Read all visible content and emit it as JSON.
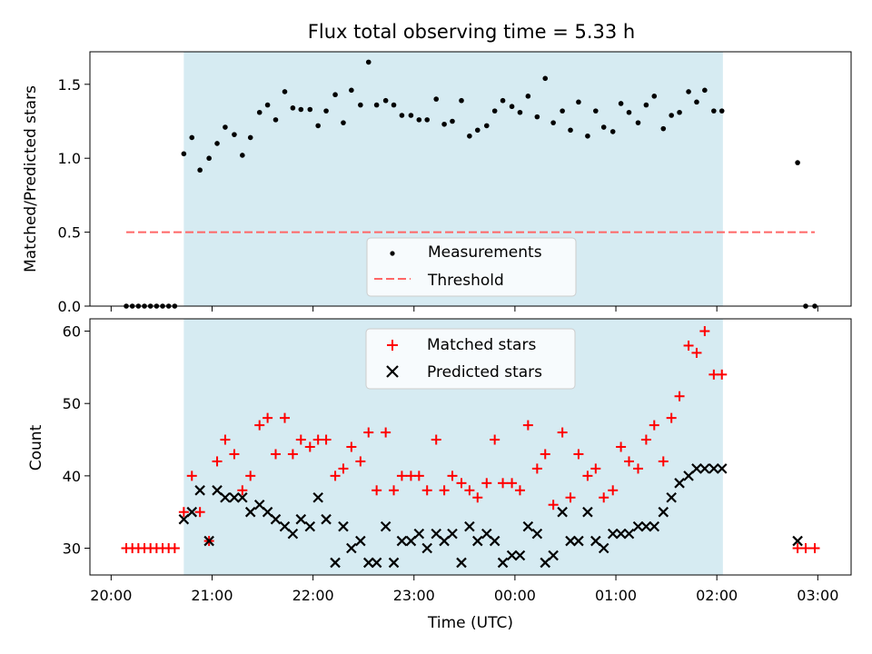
{
  "figure": {
    "title": "Flux total observing time = 5.33 h"
  },
  "top": {
    "ylabel": "Matched/Predicted stars",
    "yticks": [
      {
        "v": 0.0,
        "label": "0.0"
      },
      {
        "v": 0.5,
        "label": "0.5"
      },
      {
        "v": 1.0,
        "label": "1.0"
      },
      {
        "v": 1.5,
        "label": "1.5"
      }
    ],
    "legend": {
      "measurements": "Measurements",
      "threshold": "Threshold"
    }
  },
  "bottom": {
    "ylabel": "Count",
    "xlabel": "Time (UTC)",
    "yticks": [
      {
        "v": 30,
        "label": "30"
      },
      {
        "v": 40,
        "label": "40"
      },
      {
        "v": 50,
        "label": "50"
      },
      {
        "v": 60,
        "label": "60"
      }
    ],
    "legend": {
      "matched": "Matched stars",
      "predicted": "Predicted stars"
    }
  },
  "xticks": [
    {
      "v": 0,
      "label": "20:00"
    },
    {
      "v": 1,
      "label": "21:00"
    },
    {
      "v": 2,
      "label": "22:00"
    },
    {
      "v": 3,
      "label": "23:00"
    },
    {
      "v": 4,
      "label": "00:00"
    },
    {
      "v": 5,
      "label": "01:00"
    },
    {
      "v": 6,
      "label": "02:00"
    },
    {
      "v": 7,
      "label": "03:00"
    }
  ],
  "chart_data": [
    {
      "type": "scatter",
      "panel": "top",
      "title": "Flux total observing time = 5.33 h",
      "xlabel": "",
      "ylabel": "Matched/Predicted stars",
      "xlim": [
        -0.21,
        7.33
      ],
      "ylim": [
        0,
        1.72
      ],
      "x_unit": "hours since 20:00 UTC",
      "shaded_span": [
        0.72,
        6.06
      ],
      "shaded_color": "#add8e6",
      "legend_position": "lower center",
      "series": [
        {
          "name": "Measurements",
          "marker": "dot",
          "color": "#000000",
          "x": [
            0.15,
            0.21,
            0.27,
            0.33,
            0.39,
            0.45,
            0.51,
            0.57,
            0.63,
            0.72,
            0.8,
            0.88,
            0.97,
            1.05,
            1.13,
            1.22,
            1.3,
            1.38,
            1.47,
            1.55,
            1.63,
            1.72,
            1.8,
            1.88,
            1.97,
            2.05,
            2.13,
            2.22,
            2.3,
            2.38,
            2.47,
            2.55,
            2.63,
            2.72,
            2.8,
            2.88,
            2.97,
            3.05,
            3.13,
            3.22,
            3.3,
            3.38,
            3.47,
            3.55,
            3.63,
            3.72,
            3.8,
            3.88,
            3.97,
            4.05,
            4.13,
            4.22,
            4.3,
            4.38,
            4.47,
            4.55,
            4.63,
            4.72,
            4.8,
            4.88,
            4.97,
            5.05,
            5.13,
            5.22,
            5.3,
            5.38,
            5.47,
            5.55,
            5.63,
            5.72,
            5.8,
            5.88,
            5.97,
            6.05,
            6.8,
            6.88,
            6.97
          ],
          "y": [
            0,
            0,
            0,
            0,
            0,
            0,
            0,
            0,
            0,
            1.03,
            1.14,
            0.92,
            1.0,
            1.1,
            1.21,
            1.16,
            1.02,
            1.14,
            1.31,
            1.36,
            1.26,
            1.45,
            1.34,
            1.33,
            1.33,
            1.22,
            1.32,
            1.43,
            1.24,
            1.46,
            1.36,
            1.65,
            1.36,
            1.39,
            1.36,
            1.29,
            1.29,
            1.26,
            1.26,
            1.4,
            1.23,
            1.25,
            1.39,
            1.15,
            1.19,
            1.22,
            1.32,
            1.39,
            1.35,
            1.31,
            1.42,
            1.28,
            1.54,
            1.24,
            1.32,
            1.19,
            1.38,
            1.15,
            1.32,
            1.21,
            1.18,
            1.37,
            1.31,
            1.24,
            1.36,
            1.42,
            1.2,
            1.29,
            1.31,
            1.45,
            1.38,
            1.46,
            1.32,
            1.32,
            0.97,
            0,
            0
          ]
        },
        {
          "name": "Threshold",
          "line": "dashed",
          "color": "#ff6666",
          "x": [
            0.15,
            6.97
          ],
          "y": [
            0.5,
            0.5
          ]
        }
      ]
    },
    {
      "type": "scatter",
      "panel": "bottom",
      "xlabel": "Time (UTC)",
      "ylabel": "Count",
      "xlim": [
        -0.21,
        7.33
      ],
      "ylim": [
        26.3,
        61.7
      ],
      "x_unit": "hours since 20:00 UTC",
      "shaded_span": [
        0.72,
        6.06
      ],
      "shaded_color": "#add8e6",
      "legend_position": "upper center",
      "series": [
        {
          "name": "Matched stars",
          "marker": "plus",
          "color": "#ff0000",
          "x": [
            0.15,
            0.21,
            0.27,
            0.33,
            0.39,
            0.45,
            0.51,
            0.57,
            0.63,
            0.72,
            0.8,
            0.88,
            0.97,
            1.05,
            1.13,
            1.22,
            1.3,
            1.38,
            1.47,
            1.55,
            1.63,
            1.72,
            1.8,
            1.88,
            1.97,
            2.05,
            2.13,
            2.22,
            2.3,
            2.38,
            2.47,
            2.55,
            2.63,
            2.72,
            2.8,
            2.88,
            2.97,
            3.05,
            3.13,
            3.22,
            3.3,
            3.38,
            3.47,
            3.55,
            3.63,
            3.72,
            3.8,
            3.88,
            3.97,
            4.05,
            4.13,
            4.22,
            4.3,
            4.38,
            4.47,
            4.55,
            4.63,
            4.72,
            4.8,
            4.88,
            4.97,
            5.05,
            5.13,
            5.22,
            5.3,
            5.38,
            5.47,
            5.55,
            5.63,
            5.72,
            5.8,
            5.88,
            5.97,
            6.05,
            6.8,
            6.88,
            6.97
          ],
          "y": [
            30,
            30,
            30,
            30,
            30,
            30,
            30,
            30,
            30,
            35,
            40,
            35,
            31,
            42,
            45,
            43,
            38,
            40,
            47,
            48,
            43,
            48,
            43,
            45,
            44,
            45,
            45,
            40,
            41,
            44,
            42,
            46,
            38,
            46,
            38,
            40,
            40,
            40,
            38,
            45,
            38,
            40,
            39,
            38,
            37,
            39,
            45,
            39,
            39,
            38,
            47,
            41,
            43,
            36,
            46,
            37,
            43,
            40,
            41,
            37,
            38,
            44,
            42,
            41,
            45,
            47,
            42,
            48,
            51,
            58,
            57,
            60,
            54,
            54,
            30,
            30,
            30
          ]
        },
        {
          "name": "Predicted stars",
          "marker": "x",
          "color": "#000000",
          "x": [
            0.72,
            0.8,
            0.88,
            0.97,
            1.05,
            1.13,
            1.22,
            1.3,
            1.38,
            1.47,
            1.55,
            1.63,
            1.72,
            1.8,
            1.88,
            1.97,
            2.05,
            2.13,
            2.22,
            2.3,
            2.38,
            2.47,
            2.55,
            2.63,
            2.72,
            2.8,
            2.88,
            2.97,
            3.05,
            3.13,
            3.22,
            3.3,
            3.38,
            3.47,
            3.55,
            3.63,
            3.72,
            3.8,
            3.88,
            3.97,
            4.05,
            4.13,
            4.22,
            4.3,
            4.38,
            4.47,
            4.55,
            4.63,
            4.72,
            4.8,
            4.88,
            4.97,
            5.05,
            5.13,
            5.22,
            5.3,
            5.38,
            5.47,
            5.55,
            5.63,
            5.72,
            5.8,
            5.88,
            5.97,
            6.05,
            6.8
          ],
          "y": [
            34,
            35,
            38,
            31,
            38,
            37,
            37,
            37,
            35,
            36,
            35,
            34,
            33,
            32,
            34,
            33,
            37,
            34,
            28,
            33,
            30,
            31,
            28,
            28,
            33,
            28,
            31,
            31,
            32,
            30,
            32,
            31,
            32,
            28,
            33,
            31,
            32,
            31,
            28,
            29,
            29,
            33,
            32,
            28,
            29,
            35,
            31,
            31,
            35,
            31,
            30,
            32,
            32,
            32,
            33,
            33,
            33,
            35,
            37,
            39,
            40,
            41,
            41,
            41,
            41,
            31
          ]
        }
      ]
    }
  ]
}
